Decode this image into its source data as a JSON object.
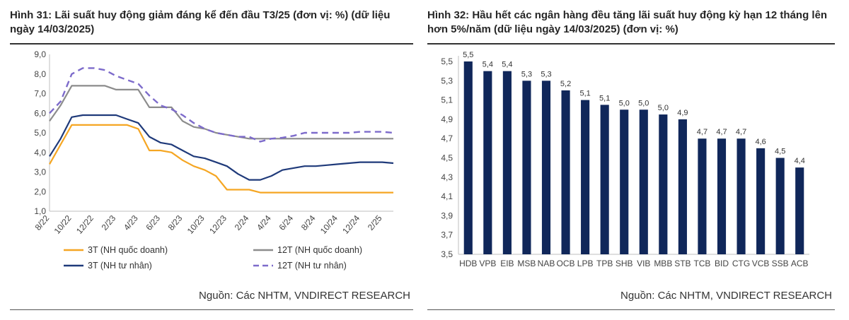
{
  "left": {
    "title": "Hình 31: Lãi suất huy động giảm đáng kể đến đầu T3/25 (đơn vị: %) (dữ liệu ngày 14/03/2025)",
    "source": "Nguồn: Các NHTM, VNDIRECT RESEARCH"
  },
  "right": {
    "title": "Hình 32: Hầu hết các ngân hàng đều tăng lãi suất huy động kỳ hạn 12 tháng lên hơn 5%/năm (dữ liệu ngày 14/03/2025) (đơn vị: %)",
    "source": "Nguồn: Các NHTM, VNDIRECT RESEARCH"
  },
  "chart_data": [
    {
      "type": "line",
      "x_unit": "month",
      "xlim": [
        "2022-08",
        "2025-03"
      ],
      "ylim": [
        1.0,
        9.0
      ],
      "yticks": [
        1.0,
        2.0,
        3.0,
        4.0,
        5.0,
        6.0,
        7.0,
        8.0,
        9.0
      ],
      "ytick_labels": [
        "1,0",
        "2,0",
        "3,0",
        "4,0",
        "5,0",
        "6,0",
        "7,0",
        "8,0",
        "9,0"
      ],
      "xtick_labels": [
        "8/22",
        "10/22",
        "12/22",
        "2/23",
        "4/23",
        "6/23",
        "8/23",
        "10/23",
        "12/23",
        "2/24",
        "4/24",
        "6/24",
        "8/24",
        "10/24",
        "12/24",
        "2/25"
      ],
      "x": [
        "2022-08",
        "2022-09",
        "2022-10",
        "2022-11",
        "2022-12",
        "2023-01",
        "2023-02",
        "2023-03",
        "2023-04",
        "2023-05",
        "2023-06",
        "2023-07",
        "2023-08",
        "2023-09",
        "2023-10",
        "2023-11",
        "2023-12",
        "2024-01",
        "2024-02",
        "2024-03",
        "2024-04",
        "2024-05",
        "2024-06",
        "2024-07",
        "2024-08",
        "2024-09",
        "2024-10",
        "2024-11",
        "2024-12",
        "2025-01",
        "2025-02",
        "2025-03"
      ],
      "series": [
        {
          "name": "3T (NH quốc doanh)",
          "color": "#f5a623",
          "style": "solid",
          "values": [
            3.4,
            4.4,
            5.4,
            5.4,
            5.4,
            5.4,
            5.4,
            5.4,
            5.2,
            4.1,
            4.1,
            4.0,
            3.6,
            3.3,
            3.1,
            2.8,
            2.1,
            2.1,
            2.1,
            1.95,
            1.95,
            1.95,
            1.95,
            1.95,
            1.95,
            1.95,
            1.95,
            1.95,
            1.95,
            1.95,
            1.95,
            1.95
          ]
        },
        {
          "name": "12T (NH quốc doanh)",
          "color": "#8c8c8c",
          "style": "solid",
          "values": [
            5.6,
            6.4,
            7.4,
            7.4,
            7.4,
            7.4,
            7.2,
            7.2,
            7.2,
            6.3,
            6.3,
            6.3,
            5.6,
            5.3,
            5.2,
            5.0,
            4.9,
            4.8,
            4.7,
            4.7,
            4.7,
            4.7,
            4.7,
            4.7,
            4.7,
            4.7,
            4.7,
            4.7,
            4.7,
            4.7,
            4.7,
            4.7
          ]
        },
        {
          "name": "3T (NH tư nhân)",
          "color": "#1f3a7a",
          "style": "solid",
          "values": [
            3.8,
            4.7,
            5.8,
            5.9,
            5.9,
            5.9,
            5.9,
            5.7,
            5.5,
            4.8,
            4.5,
            4.4,
            4.1,
            3.8,
            3.7,
            3.5,
            3.3,
            2.9,
            2.6,
            2.6,
            2.8,
            3.1,
            3.2,
            3.3,
            3.3,
            3.35,
            3.4,
            3.45,
            3.5,
            3.5,
            3.5,
            3.45
          ]
        },
        {
          "name": "12T (NH tư nhân)",
          "color": "#7d6bcb",
          "style": "dashed",
          "values": [
            6.0,
            6.6,
            8.0,
            8.3,
            8.3,
            8.2,
            7.9,
            7.7,
            7.5,
            6.9,
            6.4,
            6.2,
            5.9,
            5.5,
            5.2,
            5.0,
            4.9,
            4.8,
            4.8,
            4.55,
            4.7,
            4.75,
            4.85,
            5.0,
            5.0,
            5.0,
            5.0,
            5.0,
            5.05,
            5.05,
            5.05,
            5.0
          ]
        }
      ],
      "legend": "bottom"
    },
    {
      "type": "bar",
      "ylim": [
        3.5,
        5.5
      ],
      "yticks": [
        3.5,
        3.7,
        3.9,
        4.1,
        4.3,
        4.5,
        4.7,
        4.9,
        5.1,
        5.3,
        5.5
      ],
      "ytick_labels": [
        "3,5",
        "3,7",
        "3,9",
        "4,1",
        "4,3",
        "4,5",
        "4,7",
        "4,9",
        "5,1",
        "5,3",
        "5,5"
      ],
      "categories": [
        "HDB",
        "VPB",
        "EIB",
        "MSB",
        "NAB",
        "OCB",
        "LPB",
        "TPB",
        "SHB",
        "VIB",
        "MBB",
        "STB",
        "TCB",
        "BID",
        "CTG",
        "VCB",
        "SSB",
        "ACB"
      ],
      "values": [
        5.5,
        5.4,
        5.4,
        5.3,
        5.3,
        5.2,
        5.1,
        5.05,
        5.0,
        5.0,
        4.95,
        4.9,
        4.7,
        4.7,
        4.7,
        4.6,
        4.5,
        4.4
      ],
      "value_labels": [
        "5,5",
        "5,4",
        "5,4",
        "5,3",
        "5,3",
        "5,2",
        "5,1",
        "5,1",
        "5,0",
        "5,0",
        "5,0",
        "4,9",
        "4,7",
        "4,7",
        "4,7",
        "4,6",
        "4,5",
        "4,4"
      ],
      "color": "#10275a"
    }
  ]
}
